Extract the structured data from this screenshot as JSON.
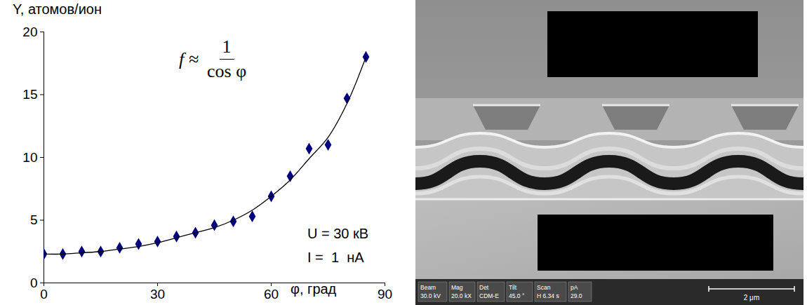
{
  "chart_data": {
    "type": "scatter",
    "y_label": "Y, атомов/ион",
    "x_label": "φ, град",
    "x": [
      0,
      5,
      10,
      15,
      20,
      25,
      30,
      35,
      40,
      45,
      50,
      55,
      60,
      65,
      70,
      75,
      80,
      85
    ],
    "series": [
      {
        "type": "scatter",
        "marker": "diamond",
        "color": "#000080",
        "values": [
          2.3,
          2.3,
          2.5,
          2.5,
          2.8,
          3.1,
          3.3,
          3.7,
          4.0,
          4.6,
          4.9,
          5.3,
          6.9,
          8.5,
          10.7,
          11.0,
          14.7,
          18.0
        ]
      },
      {
        "type": "line",
        "line_style": "solid",
        "color": "#000000",
        "values": [
          2.3,
          2.3,
          2.4,
          2.5,
          2.7,
          2.9,
          3.2,
          3.6,
          4.0,
          4.4,
          5.0,
          5.8,
          6.9,
          8.2,
          9.9,
          11.6,
          14.3,
          18.0
        ]
      }
    ],
    "formula": {
      "lhs": "f ≈",
      "numerator": "1",
      "denominator": "cos φ"
    },
    "annotations": [
      "U = 30 кВ",
      "I =  1  нА"
    ],
    "xlim": [
      0,
      90
    ],
    "xticks": [
      0,
      30,
      60,
      90
    ],
    "ylim": [
      0,
      20
    ],
    "yticks": [
      0,
      5,
      10,
      15,
      20
    ],
    "grid": false
  },
  "image": {
    "info_bar": [
      {
        "label": "Beam",
        "value": "30.0 kV"
      },
      {
        "label": "Mag",
        "value": "20.0 kX"
      },
      {
        "label": "Det",
        "value": "CDM-E"
      },
      {
        "label": "Tilt",
        "value": "45.0 °"
      },
      {
        "label": "Scan",
        "value": "H 6.34 s"
      },
      {
        "label": "pA",
        "value": "29.0"
      }
    ],
    "scale_bar": "2 μm"
  }
}
